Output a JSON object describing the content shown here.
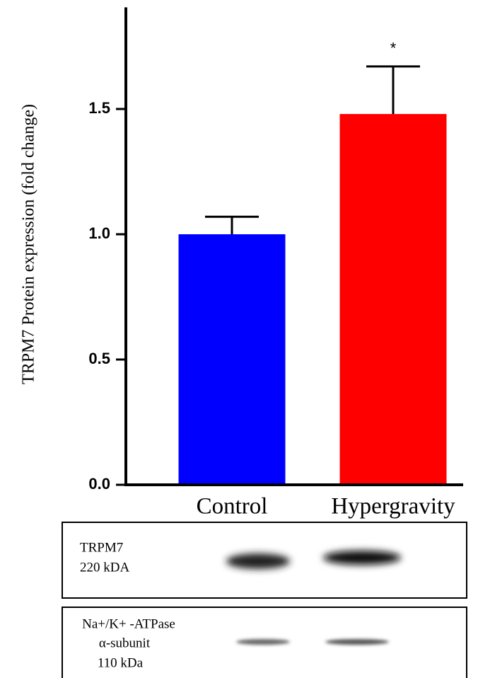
{
  "chart_data": {
    "type": "bar",
    "y_label": "TRPM7 Protein expression (fold change)",
    "categories": [
      "Control",
      "Hypergravity"
    ],
    "values": [
      1.0,
      1.48
    ],
    "errors": [
      0.07,
      0.19
    ],
    "colors": [
      "#0000ff",
      "#ff0000"
    ],
    "annotations": [
      null,
      "*"
    ],
    "ylim": [
      0,
      1.9
    ],
    "yticks": [
      {
        "value": 0,
        "label": "0.0"
      },
      0.5,
      {
        "value": 1,
        "label": "1.0"
      },
      1.5
    ],
    "grid": false,
    "blot_labels": [
      [
        "TRPM7",
        "220 kDA"
      ],
      [
        "Na+/K+ -ATPase",
        "α-subunit",
        "110 kDa"
      ]
    ]
  }
}
